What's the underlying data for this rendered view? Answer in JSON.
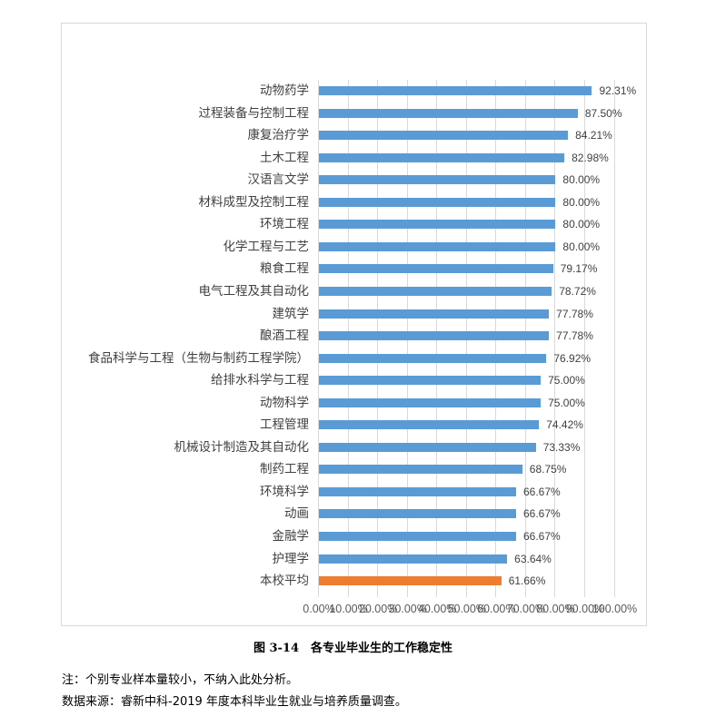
{
  "chart_data": {
    "type": "bar",
    "orientation": "horizontal",
    "title": "",
    "xlabel": "",
    "ylabel": "",
    "xlim": [
      0,
      100
    ],
    "grid": true,
    "legend": null,
    "categories": [
      "动物药学",
      "过程装备与控制工程",
      "康复治疗学",
      "土木工程",
      "汉语言文学",
      "材料成型及控制工程",
      "环境工程",
      "化学工程与工艺",
      "粮食工程",
      "电气工程及其自动化",
      "建筑学",
      "酿酒工程",
      "食品科学与工程（生物与制药工程学院）",
      "给排水科学与工程",
      "动物科学",
      "工程管理",
      "机械设计制造及其自动化",
      "制药工程",
      "环境科学",
      "动画",
      "金融学",
      "护理学",
      "本校平均"
    ],
    "values": [
      92.31,
      87.5,
      84.21,
      82.98,
      80.0,
      80.0,
      80.0,
      80.0,
      79.17,
      78.72,
      77.78,
      77.78,
      76.92,
      75.0,
      75.0,
      74.42,
      73.33,
      68.75,
      66.67,
      66.67,
      66.67,
      63.64,
      61.66
    ],
    "value_labels": [
      "92.31%",
      "87.50%",
      "84.21%",
      "82.98%",
      "80.00%",
      "80.00%",
      "80.00%",
      "80.00%",
      "79.17%",
      "78.72%",
      "77.78%",
      "77.78%",
      "76.92%",
      "75.00%",
      "75.00%",
      "74.42%",
      "73.33%",
      "68.75%",
      "66.67%",
      "66.67%",
      "66.67%",
      "63.64%",
      "61.66%"
    ],
    "x_ticks": [
      "0.00%",
      "10.00%",
      "20.00%",
      "30.00%",
      "40.00%",
      "50.00%",
      "60.00%",
      "70.00%",
      "80.00%",
      "90.00%",
      "100.00%"
    ],
    "colors": {
      "major": "#5b9bd5",
      "average": "#ed7d31",
      "grid": "#d9d9d9"
    }
  },
  "caption": "图 3-14　各专业毕业生的工作稳定性",
  "notes": [
    "注：个别专业样本量较小，不纳入此处分析。",
    "数据来源：睿新中科-2019 年度本科毕业生就业与培养质量调查。"
  ]
}
